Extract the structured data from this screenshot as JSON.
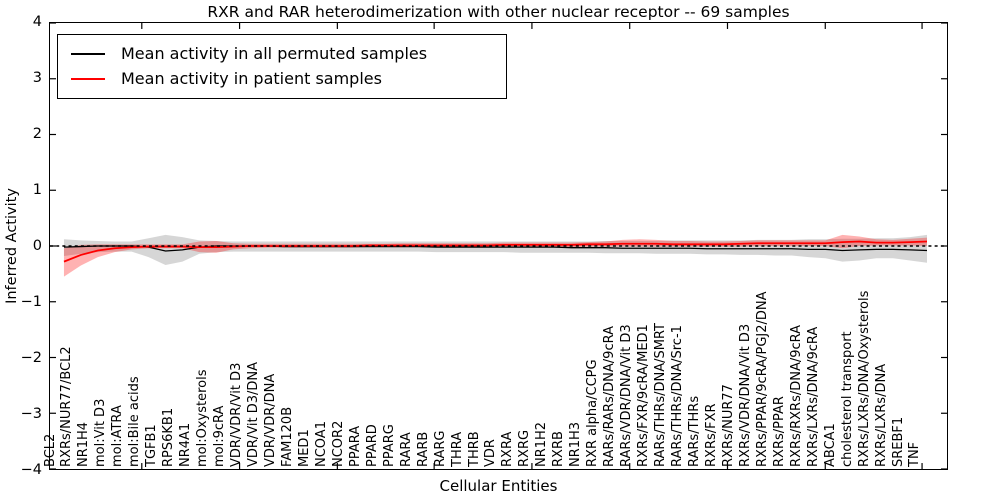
{
  "title": "RXR and RAR heterodimerization with other nuclear receptor -- 69 samples",
  "axes": {
    "ylabel": "Inferred Activity",
    "xlabel": "Cellular Entities",
    "yticks": [
      "4",
      "3",
      "2",
      "1",
      "0",
      "−1",
      "−2",
      "−3",
      "−4"
    ],
    "ylim": [
      -4,
      4
    ]
  },
  "legend": {
    "items": [
      {
        "label": "Mean activity in all permuted samples",
        "color": "#000000"
      },
      {
        "label": "Mean activity in patient samples",
        "color": "#ff0000"
      }
    ]
  },
  "colors": {
    "permuted_line": "#000000",
    "patient_line": "#ff0000",
    "permuted_band": "rgba(120,120,120,0.30)",
    "patient_band": "rgba(255,0,0,0.30)",
    "zero_line": "#000000",
    "background": "#ffffff"
  },
  "chart_data": {
    "type": "line",
    "title": "RXR and RAR heterodimerization with other nuclear receptor -- 69 samples",
    "xlabel": "Cellular Entities",
    "ylabel": "Inferred Activity",
    "ylim": [
      -4,
      4
    ],
    "grid": false,
    "legend_position": "upper left",
    "reference_line": {
      "y": 0,
      "style": "dashed",
      "color": "#000000"
    },
    "categories": [
      "BCL2",
      "RXRs/NUR77/BCL2",
      "NR1H4",
      "mol:Vit D3",
      "mol:ATRA",
      "mol:Bile acids",
      "TGFB1",
      "RPS6KB1",
      "NR4A1",
      "mol:Oxysterols",
      "mol:9cRA",
      "VDR/VDR/Vit D3",
      "VDR/Vit D3/DNA",
      "VDR/VDR/DNA",
      "FAM120B",
      "MED1",
      "NCOA1",
      "NCOR2",
      "PPARA",
      "PPARD",
      "PPARG",
      "RARA",
      "RARB",
      "RARG",
      "THRA",
      "THRB",
      "VDR",
      "RXRA",
      "RXRG",
      "NR1H2",
      "RXRB",
      "NR1H3",
      "RXR alpha/CCPG",
      "RARs/RARs/DNA/9cRA",
      "RARs/VDR/DNA/Vit D3",
      "RXRs/FXR/9cRA/MED1",
      "RARs/THRs/DNA/SMRT",
      "RARs/THRs/DNA/Src-1",
      "RARs/THRs",
      "RXRs/FXR",
      "RXRs/NUR77",
      "RXRs/VDR/DNA/Vit D3",
      "RXRs/PPAR/9cRA/PGJ2/DNA",
      "RXRs/PPAR",
      "RXRs/RXRs/DNA/9cRA",
      "RXRs/LXRs/DNA/9cRA",
      "ABCA1",
      "cholesterol transport",
      "RXRs/LXRs/DNA/Oxysterols",
      "RXRs/LXRs/DNA",
      "SREBF1",
      "TNF"
    ],
    "series": [
      {
        "name": "Mean activity in all permuted samples",
        "color": "#000000",
        "values": [
          -0.02,
          -0.01,
          0,
          0,
          0,
          -0.02,
          -0.09,
          -0.07,
          -0.02,
          0,
          0,
          0,
          0,
          -0.01,
          -0.01,
          -0.01,
          -0.01,
          -0.01,
          -0.01,
          -0.01,
          -0.01,
          -0.01,
          -0.02,
          -0.02,
          -0.02,
          -0.02,
          -0.02,
          -0.02,
          -0.02,
          -0.02,
          -0.03,
          -0.03,
          -0.03,
          -0.04,
          -0.04,
          -0.04,
          -0.04,
          -0.04,
          -0.05,
          -0.05,
          -0.05,
          -0.05,
          -0.05,
          -0.05,
          -0.06,
          -0.06,
          -0.08,
          -0.07,
          -0.06,
          -0.06,
          -0.07,
          -0.08
        ],
        "band_upper": [
          0.12,
          0.1,
          0.09,
          0.08,
          0.08,
          0.14,
          0.2,
          0.16,
          0.1,
          0.09,
          0.08,
          0.08,
          0.08,
          0.08,
          0.08,
          0.08,
          0.08,
          0.08,
          0.08,
          0.08,
          0.08,
          0.08,
          0.08,
          0.08,
          0.08,
          0.08,
          0.08,
          0.08,
          0.08,
          0.08,
          0.08,
          0.08,
          0.09,
          0.09,
          0.09,
          0.09,
          0.1,
          0.1,
          0.1,
          0.1,
          0.1,
          0.11,
          0.11,
          0.11,
          0.12,
          0.12,
          0.13,
          0.13,
          0.14,
          0.14,
          0.16,
          0.2
        ],
        "band_lower": [
          -0.18,
          -0.14,
          -0.11,
          -0.1,
          -0.1,
          -0.2,
          -0.34,
          -0.28,
          -0.14,
          -0.11,
          -0.1,
          -0.1,
          -0.1,
          -0.1,
          -0.1,
          -0.1,
          -0.1,
          -0.1,
          -0.1,
          -0.1,
          -0.1,
          -0.1,
          -0.11,
          -0.11,
          -0.11,
          -0.11,
          -0.11,
          -0.12,
          -0.12,
          -0.12,
          -0.12,
          -0.12,
          -0.13,
          -0.13,
          -0.13,
          -0.14,
          -0.14,
          -0.14,
          -0.15,
          -0.15,
          -0.16,
          -0.16,
          -0.17,
          -0.17,
          -0.2,
          -0.22,
          -0.28,
          -0.26,
          -0.22,
          -0.22,
          -0.26,
          -0.3
        ]
      },
      {
        "name": "Mean activity in patient samples",
        "color": "#ff0000",
        "values": [
          -0.28,
          -0.16,
          -0.08,
          -0.04,
          -0.02,
          -0.01,
          -0.01,
          -0.01,
          -0.02,
          -0.02,
          -0.01,
          0,
          0,
          0,
          0,
          0,
          0,
          0,
          0.01,
          0.01,
          0.01,
          0.01,
          0.01,
          0.01,
          0.01,
          0.01,
          0.02,
          0.02,
          0.02,
          0.02,
          0.02,
          0.03,
          0.03,
          0.04,
          0.04,
          0.04,
          0.03,
          0.03,
          0.03,
          0.03,
          0.04,
          0.05,
          0.05,
          0.05,
          0.05,
          0.05,
          0.07,
          0.08,
          0.06,
          0.06,
          0.07,
          0.08
        ],
        "band_upper": [
          -0.04,
          0.02,
          0.03,
          0.03,
          0.03,
          0.03,
          0.03,
          0.03,
          0.08,
          0.09,
          0.05,
          0.04,
          0.04,
          0.04,
          0.04,
          0.04,
          0.04,
          0.04,
          0.04,
          0.04,
          0.05,
          0.05,
          0.05,
          0.05,
          0.05,
          0.05,
          0.06,
          0.06,
          0.06,
          0.06,
          0.06,
          0.07,
          0.08,
          0.11,
          0.12,
          0.11,
          0.09,
          0.09,
          0.08,
          0.08,
          0.09,
          0.1,
          0.1,
          0.1,
          0.1,
          0.1,
          0.2,
          0.17,
          0.12,
          0.11,
          0.13,
          0.15
        ],
        "band_lower": [
          -0.55,
          -0.35,
          -0.2,
          -0.11,
          -0.06,
          -0.04,
          -0.04,
          -0.04,
          -0.11,
          -0.12,
          -0.06,
          -0.04,
          -0.03,
          -0.03,
          -0.03,
          -0.03,
          -0.03,
          -0.03,
          -0.02,
          -0.02,
          -0.02,
          -0.02,
          -0.02,
          -0.02,
          -0.02,
          -0.02,
          -0.02,
          -0.02,
          -0.02,
          -0.02,
          -0.02,
          -0.01,
          -0.01,
          -0.01,
          -0.01,
          -0.01,
          -0.01,
          -0.01,
          -0.01,
          -0.01,
          -0.01,
          0,
          0,
          0,
          0,
          0,
          -0.04,
          0,
          0.01,
          0.01,
          0.01,
          0
        ]
      }
    ]
  }
}
